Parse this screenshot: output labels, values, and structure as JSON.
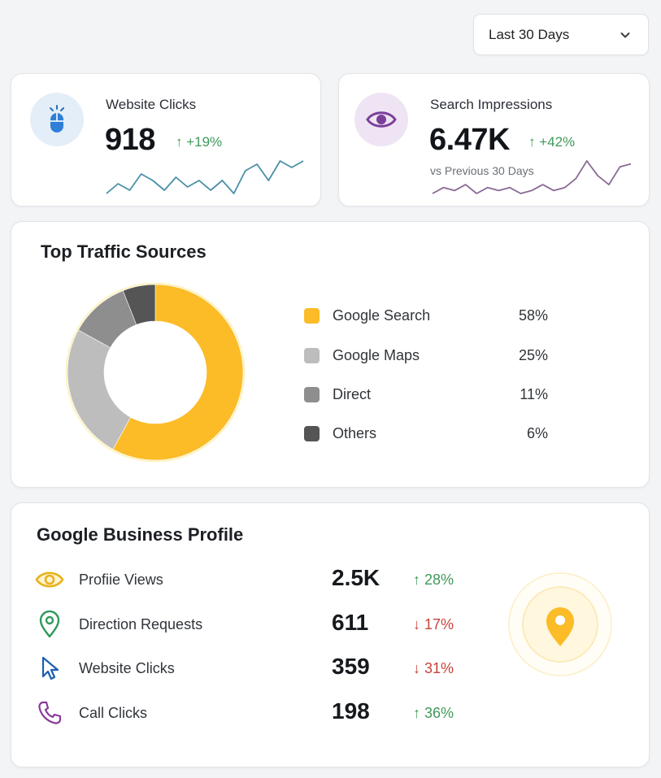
{
  "filter": {
    "selected": "Last 30 Days",
    "icon": "chevron-down-icon"
  },
  "summary": [
    {
      "label": "Website Clicks",
      "value": "918",
      "change": "↑ +19%",
      "icon": "mouse-icon",
      "spark_color": "#4a8fa8",
      "spark": [
        2,
        5,
        3,
        8,
        6,
        3,
        7,
        4,
        6,
        3,
        6,
        2,
        9,
        11,
        6,
        12,
        10,
        12
      ]
    },
    {
      "label": "Search Impressions",
      "value": "6.47K",
      "change": "↑ +42%",
      "subtext": "vs Previous 30 Days",
      "icon": "eye-icon",
      "spark_color": "#8a6a95",
      "spark": [
        2,
        4,
        3,
        5,
        2,
        4,
        3,
        4,
        2,
        3,
        5,
        3,
        4,
        7,
        13,
        8,
        5,
        11,
        12
      ]
    }
  ],
  "traffic": {
    "title": "Top Traffic Sources",
    "chart_data": {
      "type": "pie",
      "categories": [
        "Google Search",
        "Google Maps",
        "Direct",
        "Others"
      ],
      "values": [
        58,
        25,
        11,
        6
      ],
      "labels": [
        "58%",
        "25%",
        "11%",
        "6%"
      ],
      "colors": [
        "#fbbc28",
        "#bdbdbd",
        "#8e8e8e",
        "#555555"
      ]
    }
  },
  "gbp": {
    "title": "Google Business Profile",
    "rows": [
      {
        "label": "Profiie Views",
        "value": "2.5K",
        "change": "↑ 28%",
        "dir": "up",
        "icon": "eye-icon"
      },
      {
        "label": "Direction Requests",
        "value": "611",
        "change": "↓ 17%",
        "dir": "down",
        "icon": "map-pin-icon"
      },
      {
        "label": "Website Clicks",
        "value": "359",
        "change": "↓ 31%",
        "dir": "down",
        "icon": "cursor-icon"
      },
      {
        "label": "Call Clicks",
        "value": "198",
        "change": "↑ 36%",
        "dir": "up",
        "icon": "phone-icon"
      }
    ],
    "badge_icon": "location-pin-icon",
    "badge_color": "#fbbc28"
  }
}
